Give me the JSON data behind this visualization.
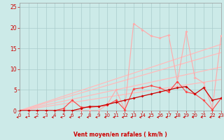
{
  "bg_color": "#cceae8",
  "grid_color": "#aacccc",
  "xlim": [
    0,
    23
  ],
  "ylim": [
    0,
    26
  ],
  "xticks": [
    0,
    1,
    2,
    3,
    4,
    5,
    6,
    7,
    8,
    9,
    10,
    11,
    12,
    13,
    14,
    15,
    16,
    17,
    18,
    19,
    20,
    21,
    22,
    23
  ],
  "yticks": [
    0,
    5,
    10,
    15,
    20,
    25
  ],
  "x": [
    0,
    1,
    2,
    3,
    4,
    5,
    6,
    7,
    8,
    9,
    10,
    11,
    12,
    13,
    14,
    15,
    16,
    17,
    18,
    19,
    20,
    21,
    22,
    23
  ],
  "line1_y": [
    0,
    0,
    0,
    0,
    0,
    0,
    0,
    0,
    0,
    0,
    1.5,
    5.0,
    0.2,
    21.0,
    19.5,
    18.0,
    17.5,
    18.2,
    7.0,
    19.0,
    8.0,
    6.7,
    0.5,
    18.0
  ],
  "line2_y": [
    0,
    0,
    0,
    0,
    0,
    0.5,
    2.5,
    0.8,
    0.8,
    1.0,
    1.3,
    2.5,
    0.2,
    5.2,
    5.5,
    6.0,
    5.5,
    4.5,
    7.0,
    4.5,
    4.0,
    2.5,
    0.2,
    3.0
  ],
  "line3_y": [
    0,
    0,
    0,
    0,
    0,
    0,
    0,
    0.5,
    1.0,
    1.0,
    1.5,
    2.0,
    2.5,
    3.0,
    3.5,
    4.0,
    4.5,
    5.0,
    5.5,
    5.8,
    4.0,
    5.5,
    2.5,
    3.0
  ],
  "diag_ends": [
    [
      0,
      16.0
    ],
    [
      0,
      14.0
    ],
    [
      0,
      10.5
    ],
    [
      0,
      7.5
    ]
  ],
  "line1_color": "#ffaaaa",
  "line2_color": "#ff4444",
  "line3_color": "#cc0000",
  "diag_color": "#ffbbbb",
  "arrow_color": "#cc0000",
  "xlabel": "Vent moyen/en rafales ( km/h )",
  "xlabel_color": "#cc0000",
  "tick_color": "#cc0000",
  "axis_color": "#999999"
}
